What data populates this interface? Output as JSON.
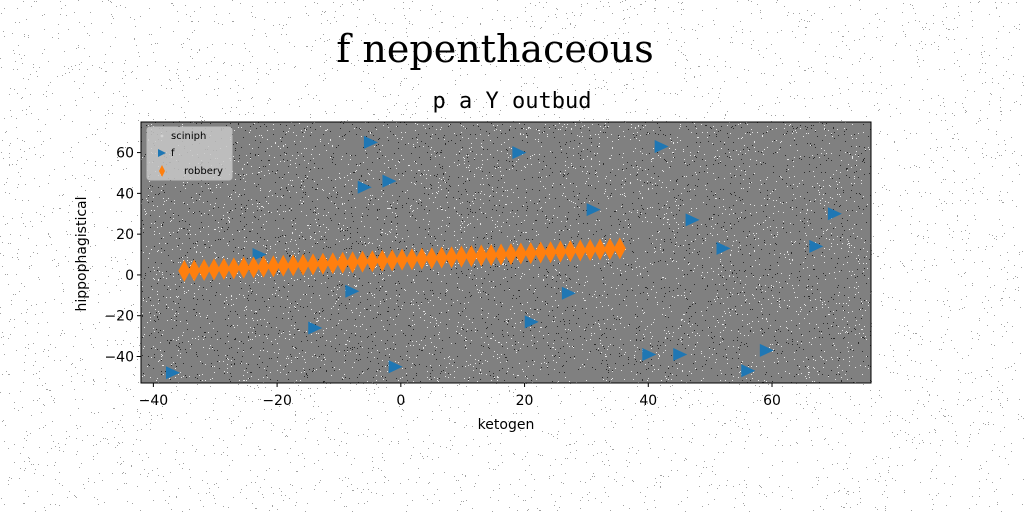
{
  "figure": {
    "suptitle": "f nepenthaceous",
    "background": "#ffffff",
    "noise": true
  },
  "chart_data": {
    "type": "scatter",
    "title": "p a Y outbud",
    "xlabel": "ketogen",
    "ylabel": "hippophagistical",
    "xlim": [
      -42,
      76
    ],
    "ylim": [
      -53,
      75
    ],
    "xticks": [
      -40,
      -20,
      0,
      20,
      40,
      60
    ],
    "yticks": [
      -40,
      -20,
      0,
      20,
      40,
      60
    ],
    "xtick_labels": [
      "−40",
      "−20",
      "0",
      "20",
      "40",
      "60"
    ],
    "ytick_labels": [
      "−40",
      "−20",
      "0",
      "20",
      "40",
      "60"
    ],
    "plot_background": "#808080",
    "grid": false,
    "legend_position": "top-left",
    "series": [
      {
        "name": "sciniph",
        "marker": "point",
        "color": "#d3d3d3",
        "x": [],
        "y": []
      },
      {
        "name": "f",
        "marker": "triangle-right",
        "color": "#1f77b4",
        "x": [
          -5,
          19,
          42,
          -6,
          -2,
          -37,
          -23,
          31,
          47,
          70,
          52,
          67,
          -8,
          27,
          -14,
          21,
          40,
          45,
          56,
          59,
          -1
        ],
        "y": [
          65,
          60,
          63,
          43,
          46,
          -48,
          10,
          32,
          27,
          30,
          13,
          14,
          -8,
          -9,
          -26,
          -23,
          -39,
          -39,
          -47,
          -37,
          -45
        ]
      },
      {
        "name": "robbery",
        "marker": "thin-diamond",
        "color": "#ff7f0e",
        "x": [
          -35.0,
          -33.4,
          -31.8,
          -30.2,
          -28.6,
          -27.0,
          -25.4,
          -23.8,
          -22.2,
          -20.6,
          -19.0,
          -17.4,
          -15.8,
          -14.2,
          -12.6,
          -11.0,
          -9.4,
          -7.8,
          -6.2,
          -4.6,
          -3.0,
          -1.4,
          0.2,
          1.8,
          3.4,
          5.0,
          6.6,
          8.2,
          9.8,
          11.4,
          13.0,
          14.6,
          16.2,
          17.8,
          19.4,
          21.0,
          22.6,
          24.2,
          25.8,
          27.4,
          29.0,
          30.6,
          32.2,
          33.8,
          35.4
        ],
        "y": [
          2.0,
          2.2,
          2.5,
          2.7,
          3.0,
          3.2,
          3.5,
          3.7,
          4.0,
          4.2,
          4.5,
          4.7,
          5.0,
          5.2,
          5.5,
          5.7,
          6.0,
          6.2,
          6.5,
          6.7,
          7.0,
          7.2,
          7.5,
          7.7,
          8.0,
          8.2,
          8.5,
          8.7,
          9.0,
          9.2,
          9.5,
          9.7,
          10.0,
          10.2,
          10.5,
          10.7,
          11.0,
          11.2,
          11.5,
          11.7,
          12.0,
          12.2,
          12.5,
          12.7,
          13.0
        ]
      }
    ]
  }
}
